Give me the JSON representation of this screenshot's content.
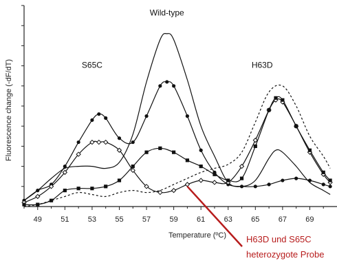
{
  "chart_data": {
    "type": "line",
    "title": "",
    "xlabel": "Temperature (ºC)",
    "ylabel": "Fluorescence change (-dF/dT)",
    "xlim": [
      48,
      71
    ],
    "ylim": [
      0,
      100
    ],
    "x_ticks": [
      "49",
      "51",
      "53",
      "55",
      "57",
      "59",
      "61",
      "63",
      "65",
      "67",
      "69"
    ],
    "grid": false,
    "curve_labels": [
      {
        "text": "Wild-type",
        "x": 58.5,
        "y": 95
      },
      {
        "text": "S65C",
        "x": 53,
        "y": 69
      },
      {
        "text": "H63D",
        "x": 65.5,
        "y": 69
      }
    ],
    "series": [
      {
        "style": "solid-line",
        "x": [
          48,
          49,
          50,
          51,
          52,
          53,
          54,
          55,
          56,
          57,
          58,
          58.5,
          59,
          60,
          61,
          62,
          63,
          64,
          65,
          66,
          66.5,
          67,
          68,
          69,
          70,
          70.5
        ],
        "y": [
          3,
          8,
          14,
          19,
          20,
          20,
          19,
          22,
          36,
          62,
          83,
          86,
          83,
          63,
          40,
          25,
          12,
          10,
          13,
          24,
          28,
          27,
          20,
          12,
          8,
          6
        ]
      },
      {
        "style": "line-filled-circles",
        "x": [
          48,
          49,
          50,
          51,
          52,
          53,
          53.5,
          54,
          55,
          56,
          57,
          58,
          58.5,
          59,
          60,
          61,
          62,
          63,
          64,
          65,
          66,
          67,
          68,
          69,
          70,
          70.5
        ],
        "y": [
          3,
          8,
          11,
          20,
          32,
          43,
          46,
          44,
          34,
          32,
          45,
          60,
          62,
          60,
          45,
          28,
          17,
          11,
          10,
          10,
          11,
          13,
          14,
          13,
          11,
          10
        ]
      },
      {
        "style": "line-open-diamonds",
        "x": [
          48,
          49,
          50,
          51,
          52,
          53,
          53.5,
          54,
          55,
          56,
          57,
          58,
          59,
          60,
          61,
          62,
          63,
          64,
          65,
          66,
          66.5,
          67,
          68,
          69,
          70,
          70.5
        ],
        "y": [
          2,
          5,
          10,
          17,
          26,
          32,
          32,
          32,
          28,
          18,
          10,
          7,
          8,
          11,
          13,
          12,
          12,
          20,
          33,
          48,
          53,
          52,
          40,
          27,
          16,
          12
        ]
      },
      {
        "style": "line-filled-squares",
        "x": [
          48,
          49,
          50,
          51,
          52,
          53,
          54,
          55,
          56,
          57,
          58,
          59,
          60,
          61,
          62,
          63,
          64,
          65,
          66,
          66.5,
          67,
          68,
          69,
          70,
          70.5
        ],
        "y": [
          1,
          1,
          3,
          8,
          9,
          9,
          10,
          13,
          20,
          27,
          29,
          27,
          23,
          20,
          16,
          13,
          14,
          30,
          48,
          54,
          53,
          40,
          28,
          17,
          13
        ]
      },
      {
        "style": "dashed-line",
        "x": [
          48,
          49,
          50,
          51,
          52,
          53,
          54,
          55,
          56,
          57,
          58,
          59,
          60,
          61,
          62,
          63,
          64,
          65,
          66,
          67,
          68,
          69,
          70,
          70.5
        ],
        "y": [
          0,
          1,
          3,
          5,
          7,
          6,
          5,
          7,
          8,
          7,
          8,
          11,
          14,
          17,
          19,
          21,
          27,
          42,
          57,
          60,
          50,
          35,
          25,
          19
        ]
      }
    ],
    "annotation": {
      "lines": [
        "H63D und S65C",
        "heterozygote Probe"
      ],
      "color": "#b71c1c",
      "points_to": {
        "x": 60,
        "y": 10
      }
    }
  }
}
